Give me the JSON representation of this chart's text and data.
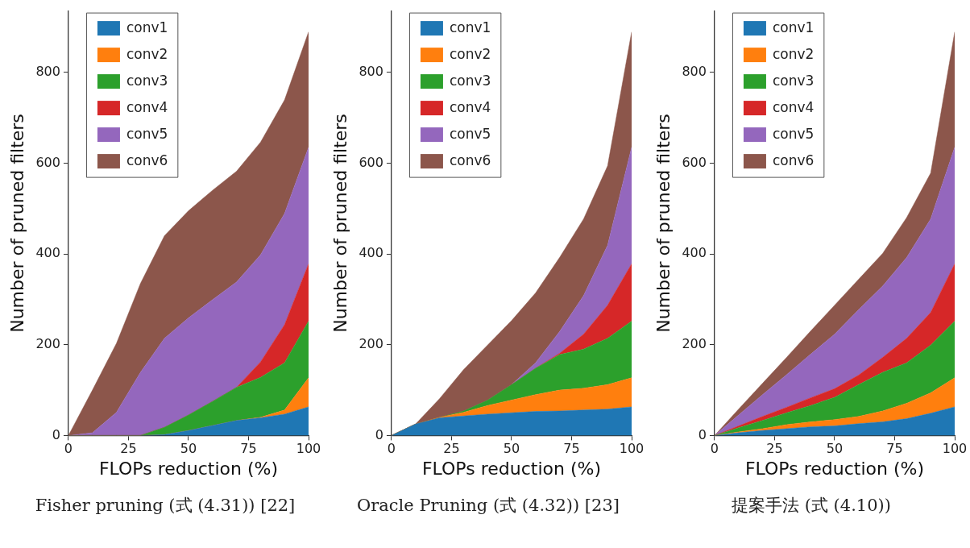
{
  "chart_data": [
    {
      "type": "area",
      "stacked": true,
      "title": "Fisher pruning (式 (4.31)) [22]",
      "xlabel": "FLOPs reduction (%)",
      "ylabel": "Number of pruned filters",
      "x": [
        0,
        10,
        20,
        30,
        40,
        50,
        60,
        70,
        80,
        90,
        100
      ],
      "xlim": [
        0,
        100
      ],
      "xticks": [
        0,
        25,
        50,
        75,
        100
      ],
      "ylim": [
        0,
        935
      ],
      "yticks": [
        0,
        200,
        400,
        600,
        800
      ],
      "legend": "top left",
      "grid": false,
      "series": [
        {
          "name": "conv1",
          "color": "#1f77b4",
          "values": [
            0,
            0,
            0,
            0,
            2,
            11,
            22,
            33,
            39,
            47,
            63
          ]
        },
        {
          "name": "conv2",
          "color": "#ff7f0e",
          "values": [
            0,
            0,
            0,
            0,
            0,
            0,
            0,
            0,
            1,
            9,
            64
          ]
        },
        {
          "name": "conv3",
          "color": "#2ca02c",
          "values": [
            0,
            0,
            0,
            0,
            16,
            34,
            53,
            73,
            88,
            104,
            125
          ]
        },
        {
          "name": "conv4",
          "color": "#d62728",
          "values": [
            0,
            0,
            0,
            0,
            0,
            0,
            0,
            0,
            34,
            84,
            126
          ]
        },
        {
          "name": "conv5",
          "color": "#9467bd",
          "values": [
            0,
            6,
            51,
            139,
            196,
            214,
            224,
            232,
            236,
            245,
            257
          ]
        },
        {
          "name": "conv6",
          "color": "#8c564b",
          "values": [
            0,
            94,
            152,
            196,
            226,
            236,
            241,
            244,
            248,
            250,
            254
          ]
        }
      ]
    },
    {
      "type": "area",
      "stacked": true,
      "title": "Oracle Pruning (式 (4.32)) [23]",
      "xlabel": "FLOPs reduction (%)",
      "ylabel": "Number of pruned filters",
      "x": [
        0,
        10,
        20,
        30,
        40,
        50,
        60,
        70,
        80,
        90,
        100
      ],
      "xlim": [
        0,
        100
      ],
      "xticks": [
        0,
        25,
        50,
        75,
        100
      ],
      "ylim": [
        0,
        935
      ],
      "yticks": [
        0,
        200,
        400,
        600,
        800
      ],
      "legend": "top left",
      "grid": false,
      "series": [
        {
          "name": "conv1",
          "color": "#1f77b4",
          "values": [
            0,
            25,
            39,
            43,
            47,
            50,
            53,
            54,
            56,
            58,
            63
          ]
        },
        {
          "name": "conv2",
          "color": "#ff7f0e",
          "values": [
            0,
            0,
            1,
            8,
            19,
            28,
            37,
            46,
            48,
            54,
            64
          ]
        },
        {
          "name": "conv3",
          "color": "#2ca02c",
          "values": [
            0,
            0,
            0,
            3,
            12,
            34,
            58,
            78,
            86,
            102,
            125
          ]
        },
        {
          "name": "conv4",
          "color": "#d62728",
          "values": [
            0,
            0,
            0,
            0,
            0,
            0,
            0,
            3,
            33,
            73,
            126
          ]
        },
        {
          "name": "conv5",
          "color": "#9467bd",
          "values": [
            0,
            0,
            0,
            0,
            0,
            0,
            12,
            48,
            85,
            132,
            257
          ]
        },
        {
          "name": "conv6",
          "color": "#8c564b",
          "values": [
            0,
            0,
            41,
            91,
            121,
            141,
            154,
            163,
            169,
            175,
            254
          ]
        }
      ]
    },
    {
      "type": "area",
      "stacked": true,
      "title": "提案手法 (式 (4.10))",
      "xlabel": "FLOPs reduction (%)",
      "ylabel": "Number of pruned filters",
      "x": [
        0,
        10,
        20,
        30,
        40,
        50,
        60,
        70,
        80,
        90,
        100
      ],
      "xlim": [
        0,
        100
      ],
      "xticks": [
        0,
        25,
        50,
        75,
        100
      ],
      "ylim": [
        0,
        935
      ],
      "yticks": [
        0,
        200,
        400,
        600,
        800
      ],
      "legend": "top left",
      "grid": false,
      "series": [
        {
          "name": "conv1",
          "color": "#1f77b4",
          "values": [
            0,
            6,
            11,
            15,
            19,
            21,
            26,
            30,
            37,
            49,
            63
          ]
        },
        {
          "name": "conv2",
          "color": "#ff7f0e",
          "values": [
            0,
            2,
            4,
            9,
            11,
            14,
            16,
            24,
            34,
            45,
            64
          ]
        },
        {
          "name": "conv3",
          "color": "#2ca02c",
          "values": [
            0,
            9,
            18,
            26,
            36,
            49,
            70,
            85,
            89,
            105,
            125
          ]
        },
        {
          "name": "conv4",
          "color": "#d62728",
          "values": [
            0,
            4,
            9,
            12,
            17,
            19,
            21,
            33,
            54,
            72,
            126
          ]
        },
        {
          "name": "conv5",
          "color": "#9467bd",
          "values": [
            0,
            24,
            48,
            72,
            96,
            120,
            144,
            157,
            178,
            206,
            257
          ]
        },
        {
          "name": "conv6",
          "color": "#8c564b",
          "values": [
            0,
            13,
            25,
            38,
            51,
            64,
            67,
            72,
            88,
            101,
            254
          ]
        }
      ]
    }
  ]
}
